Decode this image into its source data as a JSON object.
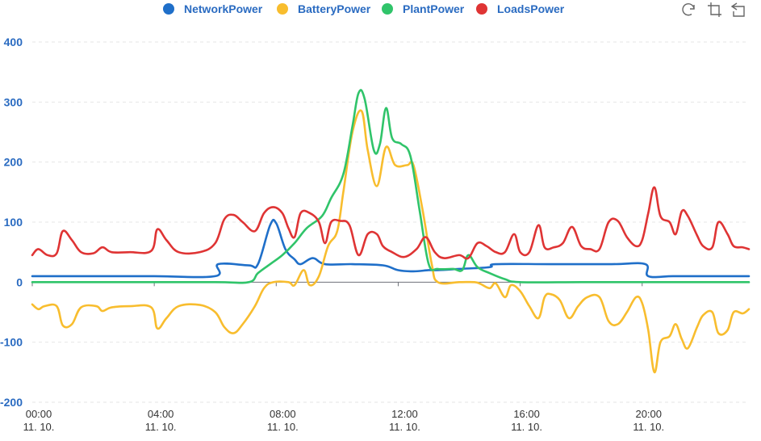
{
  "toolbox": [
    {
      "name": "restore-icon"
    },
    {
      "name": "zoom-icon"
    },
    {
      "name": "zoom-reset-icon"
    }
  ],
  "chart_data": {
    "type": "line",
    "legend_position": "top-center",
    "grid": true,
    "xlabel": "",
    "ylabel": "",
    "xlim": [
      0,
      23.5
    ],
    "ylim": [
      -200,
      400
    ],
    "yticks": [
      "-200",
      "-100",
      "0",
      "100",
      "200",
      "300",
      "400"
    ],
    "xticks": [
      {
        "x": 0,
        "time": "00:00",
        "date": "11. 10."
      },
      {
        "x": 4,
        "time": "04:00",
        "date": "11. 10."
      },
      {
        "x": 8,
        "time": "08:00",
        "date": "11. 10."
      },
      {
        "x": 12,
        "time": "12:00",
        "date": "11. 10."
      },
      {
        "x": 16,
        "time": "16:00",
        "date": "11. 10."
      },
      {
        "x": 20,
        "time": "20:00",
        "date": "11. 10."
      }
    ],
    "series": [
      {
        "name": "NetworkPower",
        "color": "#1f6fc9",
        "points": [
          [
            0,
            10
          ],
          [
            2,
            10
          ],
          [
            4,
            10
          ],
          [
            6,
            10
          ],
          [
            6.1,
            30
          ],
          [
            7.1,
            28
          ],
          [
            7.4,
            30
          ],
          [
            7.8,
            95
          ],
          [
            8.0,
            98
          ],
          [
            8.3,
            55
          ],
          [
            8.6,
            38
          ],
          [
            8.8,
            30
          ],
          [
            9.2,
            40
          ],
          [
            9.6,
            30
          ],
          [
            10.5,
            30
          ],
          [
            11.5,
            28
          ],
          [
            12.0,
            20
          ],
          [
            12.5,
            18
          ],
          [
            13.0,
            20
          ],
          [
            13.3,
            20
          ],
          [
            14,
            22
          ],
          [
            15,
            25
          ],
          [
            15.2,
            30
          ],
          [
            17,
            30
          ],
          [
            19,
            30
          ],
          [
            20.1,
            30
          ],
          [
            20.2,
            10
          ],
          [
            21,
            10
          ],
          [
            22,
            10
          ],
          [
            23.5,
            10
          ]
        ]
      },
      {
        "name": "BatteryPower",
        "color": "#f8bd2e",
        "points": [
          [
            0,
            -37
          ],
          [
            0.2,
            -45
          ],
          [
            0.4,
            -40
          ],
          [
            0.8,
            -40
          ],
          [
            1.0,
            -72
          ],
          [
            1.3,
            -70
          ],
          [
            1.6,
            -42
          ],
          [
            2.1,
            -40
          ],
          [
            2.3,
            -48
          ],
          [
            2.6,
            -42
          ],
          [
            3.2,
            -40
          ],
          [
            3.9,
            -42
          ],
          [
            4.1,
            -77
          ],
          [
            4.4,
            -60
          ],
          [
            4.8,
            -40
          ],
          [
            5.5,
            -38
          ],
          [
            6.0,
            -50
          ],
          [
            6.3,
            -75
          ],
          [
            6.6,
            -85
          ],
          [
            6.9,
            -70
          ],
          [
            7.3,
            -40
          ],
          [
            7.6,
            -10
          ],
          [
            7.9,
            0
          ],
          [
            8.4,
            0
          ],
          [
            8.6,
            -5
          ],
          [
            8.9,
            20
          ],
          [
            9.1,
            -5
          ],
          [
            9.4,
            10
          ],
          [
            9.7,
            60
          ],
          [
            10.0,
            85
          ],
          [
            10.2,
            150
          ],
          [
            10.5,
            250
          ],
          [
            10.8,
            285
          ],
          [
            11.0,
            220
          ],
          [
            11.3,
            160
          ],
          [
            11.6,
            225
          ],
          [
            11.9,
            195
          ],
          [
            12.3,
            195
          ],
          [
            12.5,
            195
          ],
          [
            12.8,
            120
          ],
          [
            13.1,
            30
          ],
          [
            13.3,
            0
          ],
          [
            14.0,
            0
          ],
          [
            14.5,
            0
          ],
          [
            14.7,
            -3
          ],
          [
            15.0,
            -10
          ],
          [
            15.2,
            -2
          ],
          [
            15.5,
            -25
          ],
          [
            15.7,
            -5
          ],
          [
            16.0,
            -15
          ],
          [
            16.3,
            -40
          ],
          [
            16.6,
            -60
          ],
          [
            16.8,
            -25
          ],
          [
            17.0,
            -20
          ],
          [
            17.3,
            -30
          ],
          [
            17.6,
            -60
          ],
          [
            17.9,
            -40
          ],
          [
            18.2,
            -25
          ],
          [
            18.6,
            -25
          ],
          [
            18.9,
            -65
          ],
          [
            19.2,
            -70
          ],
          [
            19.5,
            -50
          ],
          [
            19.8,
            -25
          ],
          [
            20.0,
            -35
          ],
          [
            20.2,
            -80
          ],
          [
            20.4,
            -150
          ],
          [
            20.6,
            -100
          ],
          [
            20.9,
            -90
          ],
          [
            21.1,
            -70
          ],
          [
            21.3,
            -95
          ],
          [
            21.5,
            -110
          ],
          [
            21.8,
            -75
          ],
          [
            22.0,
            -55
          ],
          [
            22.3,
            -50
          ],
          [
            22.5,
            -85
          ],
          [
            22.8,
            -80
          ],
          [
            23.0,
            -50
          ],
          [
            23.3,
            -52
          ],
          [
            23.5,
            -45
          ]
        ]
      },
      {
        "name": "PlantPower",
        "color": "#30c46a",
        "points": [
          [
            0,
            0
          ],
          [
            3,
            0
          ],
          [
            6,
            0
          ],
          [
            7.1,
            0
          ],
          [
            7.4,
            15
          ],
          [
            7.8,
            30
          ],
          [
            8.2,
            45
          ],
          [
            8.6,
            65
          ],
          [
            9.0,
            90
          ],
          [
            9.5,
            110
          ],
          [
            9.8,
            140
          ],
          [
            10.2,
            180
          ],
          [
            10.5,
            260
          ],
          [
            10.7,
            315
          ],
          [
            10.9,
            305
          ],
          [
            11.2,
            220
          ],
          [
            11.4,
            230
          ],
          [
            11.6,
            290
          ],
          [
            11.8,
            240
          ],
          [
            12.1,
            230
          ],
          [
            12.4,
            210
          ],
          [
            12.7,
            120
          ],
          [
            13.0,
            30
          ],
          [
            13.3,
            22
          ],
          [
            13.8,
            22
          ],
          [
            14.1,
            20
          ],
          [
            14.3,
            45
          ],
          [
            14.6,
            25
          ],
          [
            15.0,
            15
          ],
          [
            15.5,
            5
          ],
          [
            16.0,
            0
          ],
          [
            18,
            0
          ],
          [
            20,
            0
          ],
          [
            22,
            0
          ],
          [
            23.5,
            0
          ]
        ]
      },
      {
        "name": "LoadsPower",
        "color": "#df3434",
        "points": [
          [
            0,
            45
          ],
          [
            0.2,
            55
          ],
          [
            0.5,
            45
          ],
          [
            0.8,
            48
          ],
          [
            1.0,
            85
          ],
          [
            1.3,
            70
          ],
          [
            1.6,
            50
          ],
          [
            2.0,
            48
          ],
          [
            2.3,
            58
          ],
          [
            2.6,
            50
          ],
          [
            3.2,
            50
          ],
          [
            3.9,
            52
          ],
          [
            4.1,
            88
          ],
          [
            4.4,
            70
          ],
          [
            4.8,
            50
          ],
          [
            5.5,
            50
          ],
          [
            6.0,
            65
          ],
          [
            6.3,
            105
          ],
          [
            6.6,
            112
          ],
          [
            6.9,
            100
          ],
          [
            7.3,
            85
          ],
          [
            7.6,
            115
          ],
          [
            7.9,
            125
          ],
          [
            8.2,
            115
          ],
          [
            8.4,
            90
          ],
          [
            8.6,
            75
          ],
          [
            8.8,
            115
          ],
          [
            9.1,
            115
          ],
          [
            9.4,
            100
          ],
          [
            9.6,
            65
          ],
          [
            9.8,
            100
          ],
          [
            10.1,
            102
          ],
          [
            10.4,
            95
          ],
          [
            10.7,
            45
          ],
          [
            11.0,
            80
          ],
          [
            11.3,
            80
          ],
          [
            11.5,
            60
          ],
          [
            11.8,
            50
          ],
          [
            12.2,
            42
          ],
          [
            12.6,
            55
          ],
          [
            12.9,
            75
          ],
          [
            13.2,
            50
          ],
          [
            13.5,
            40
          ],
          [
            14.0,
            45
          ],
          [
            14.3,
            40
          ],
          [
            14.6,
            65
          ],
          [
            14.9,
            60
          ],
          [
            15.2,
            50
          ],
          [
            15.5,
            50
          ],
          [
            15.8,
            80
          ],
          [
            16.0,
            50
          ],
          [
            16.3,
            50
          ],
          [
            16.6,
            95
          ],
          [
            16.8,
            58
          ],
          [
            17.1,
            58
          ],
          [
            17.4,
            65
          ],
          [
            17.7,
            92
          ],
          [
            18.0,
            60
          ],
          [
            18.3,
            55
          ],
          [
            18.6,
            55
          ],
          [
            18.9,
            100
          ],
          [
            19.2,
            102
          ],
          [
            19.5,
            75
          ],
          [
            19.8,
            60
          ],
          [
            20.0,
            70
          ],
          [
            20.2,
            115
          ],
          [
            20.4,
            158
          ],
          [
            20.6,
            110
          ],
          [
            20.9,
            100
          ],
          [
            21.1,
            80
          ],
          [
            21.3,
            118
          ],
          [
            21.5,
            110
          ],
          [
            21.8,
            78
          ],
          [
            22.0,
            60
          ],
          [
            22.3,
            58
          ],
          [
            22.5,
            100
          ],
          [
            22.8,
            80
          ],
          [
            23.0,
            60
          ],
          [
            23.3,
            58
          ],
          [
            23.5,
            55
          ]
        ]
      }
    ]
  }
}
